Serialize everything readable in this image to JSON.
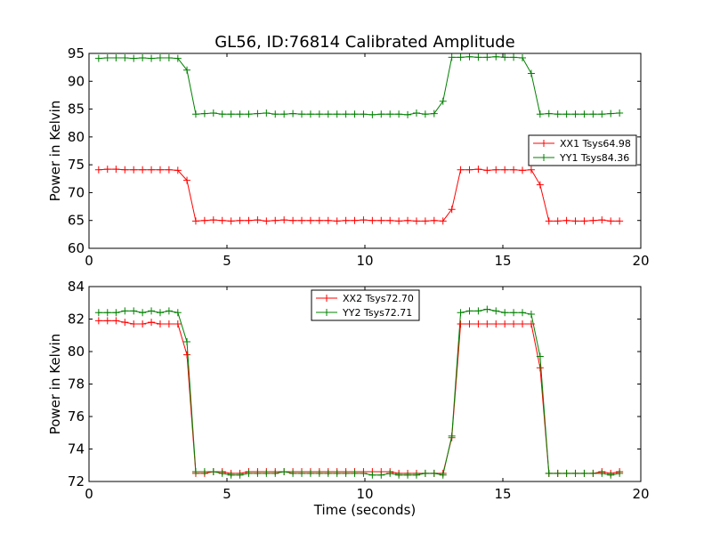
{
  "title": "GL56, ID:76814 Calibrated Amplitude",
  "colors": {
    "series1": "#ff0000",
    "series2": "#008000",
    "axes": "#000000",
    "background": "#ffffff"
  },
  "chart_data": [
    {
      "type": "line",
      "title": "GL56, ID:76814 Calibrated Amplitude",
      "xlabel": "",
      "ylabel": "Power in Kelvin",
      "xlim": [
        0,
        20
      ],
      "ylim": [
        60,
        95
      ],
      "xticks": [
        "0",
        "5",
        "10",
        "15",
        "20"
      ],
      "yticks": [
        "60",
        "65",
        "70",
        "75",
        "80",
        "85",
        "90",
        "95"
      ],
      "grid": false,
      "legend_position": "center-right",
      "marker": "+",
      "x": [
        0.35,
        0.67,
        0.98,
        1.3,
        1.62,
        1.94,
        2.26,
        2.58,
        2.9,
        3.22,
        3.55,
        3.87,
        4.19,
        4.51,
        4.83,
        5.15,
        5.47,
        5.79,
        6.11,
        6.43,
        6.75,
        7.07,
        7.39,
        7.71,
        8.03,
        8.35,
        8.67,
        8.99,
        9.31,
        9.63,
        9.95,
        10.27,
        10.59,
        10.91,
        11.23,
        11.55,
        11.87,
        12.19,
        12.51,
        12.83,
        13.15,
        13.47,
        13.79,
        14.11,
        14.43,
        14.75,
        15.07,
        15.39,
        15.71,
        16.03,
        16.35,
        16.67,
        16.99,
        17.31,
        17.63,
        17.95,
        18.27,
        18.59,
        18.91,
        19.23
      ],
      "series": [
        {
          "name": "XX1 Tsys64.98",
          "color": "#ff0000",
          "values": [
            74.1,
            74.2,
            74.2,
            74.1,
            74.1,
            74.1,
            74.1,
            74.1,
            74.1,
            74.0,
            72.2,
            64.9,
            65.0,
            65.1,
            65.0,
            64.9,
            65.0,
            65.0,
            65.1,
            64.9,
            65.0,
            65.1,
            65.0,
            65.0,
            65.0,
            65.0,
            65.0,
            64.9,
            65.0,
            65.0,
            65.1,
            65.0,
            65.0,
            65.0,
            64.9,
            65.0,
            64.9,
            64.9,
            65.0,
            64.9,
            67.0,
            74.1,
            74.1,
            74.2,
            74.0,
            74.1,
            74.1,
            74.1,
            74.0,
            74.1,
            71.4,
            64.9,
            64.9,
            65.0,
            64.9,
            64.9,
            65.0,
            65.1,
            64.9,
            64.9
          ]
        },
        {
          "name": "YY1 Tsys84.36",
          "color": "#008000",
          "values": [
            94.1,
            94.2,
            94.2,
            94.2,
            94.1,
            94.2,
            94.1,
            94.2,
            94.2,
            94.1,
            92.0,
            84.1,
            84.2,
            84.3,
            84.1,
            84.1,
            84.1,
            84.1,
            84.2,
            84.3,
            84.1,
            84.1,
            84.2,
            84.1,
            84.1,
            84.1,
            84.1,
            84.1,
            84.1,
            84.1,
            84.1,
            84.0,
            84.1,
            84.1,
            84.1,
            84.0,
            84.3,
            84.1,
            84.2,
            86.4,
            94.3,
            94.3,
            94.4,
            94.3,
            94.3,
            94.4,
            94.3,
            94.3,
            94.2,
            91.4,
            84.1,
            84.2,
            84.1,
            84.1,
            84.1,
            84.1,
            84.1,
            84.1,
            84.2,
            84.3
          ]
        }
      ]
    },
    {
      "type": "line",
      "title": "",
      "xlabel": "Time (seconds)",
      "ylabel": "Power in Kelvin",
      "xlim": [
        0,
        20
      ],
      "ylim": [
        72,
        84
      ],
      "xticks": [
        "0",
        "5",
        "10",
        "15",
        "20"
      ],
      "yticks": [
        "72",
        "74",
        "76",
        "78",
        "80",
        "82",
        "84"
      ],
      "grid": false,
      "legend_position": "upper-center",
      "marker": "+",
      "x": [
        0.35,
        0.67,
        0.98,
        1.3,
        1.62,
        1.94,
        2.26,
        2.58,
        2.9,
        3.22,
        3.55,
        3.87,
        4.19,
        4.51,
        4.83,
        5.15,
        5.47,
        5.79,
        6.11,
        6.43,
        6.75,
        7.07,
        7.39,
        7.71,
        8.03,
        8.35,
        8.67,
        8.99,
        9.31,
        9.63,
        9.95,
        10.27,
        10.59,
        10.91,
        11.23,
        11.55,
        11.87,
        12.19,
        12.51,
        12.83,
        13.15,
        13.47,
        13.79,
        14.11,
        14.43,
        14.75,
        15.07,
        15.39,
        15.71,
        16.03,
        16.35,
        16.67,
        16.99,
        17.31,
        17.63,
        17.95,
        18.27,
        18.59,
        18.91,
        19.23
      ],
      "series": [
        {
          "name": "XX2 Tsys72.70",
          "color": "#ff0000",
          "values": [
            81.9,
            81.9,
            81.9,
            81.8,
            81.7,
            81.7,
            81.8,
            81.7,
            81.7,
            81.7,
            79.8,
            72.5,
            72.5,
            72.6,
            72.6,
            72.5,
            72.5,
            72.6,
            72.6,
            72.6,
            72.6,
            72.6,
            72.6,
            72.6,
            72.6,
            72.6,
            72.6,
            72.6,
            72.6,
            72.6,
            72.6,
            72.6,
            72.6,
            72.6,
            72.5,
            72.5,
            72.5,
            72.5,
            72.5,
            72.5,
            74.7,
            81.7,
            81.7,
            81.7,
            81.7,
            81.7,
            81.7,
            81.7,
            81.7,
            81.7,
            79.0,
            72.5,
            72.5,
            72.5,
            72.5,
            72.5,
            72.5,
            72.6,
            72.5,
            72.6
          ]
        },
        {
          "name": "YY2 Tsys72.71",
          "color": "#008000",
          "values": [
            82.4,
            82.4,
            82.4,
            82.5,
            82.5,
            82.4,
            82.5,
            82.4,
            82.5,
            82.4,
            80.6,
            72.6,
            72.6,
            72.6,
            72.5,
            72.4,
            72.4,
            72.5,
            72.5,
            72.5,
            72.5,
            72.6,
            72.5,
            72.5,
            72.5,
            72.5,
            72.5,
            72.5,
            72.5,
            72.5,
            72.5,
            72.4,
            72.4,
            72.5,
            72.4,
            72.4,
            72.4,
            72.5,
            72.5,
            72.4,
            74.8,
            82.4,
            82.5,
            82.5,
            82.6,
            82.5,
            82.4,
            82.4,
            82.4,
            82.3,
            79.7,
            72.5,
            72.5,
            72.5,
            72.5,
            72.5,
            72.5,
            72.5,
            72.4,
            72.5
          ]
        }
      ]
    }
  ]
}
